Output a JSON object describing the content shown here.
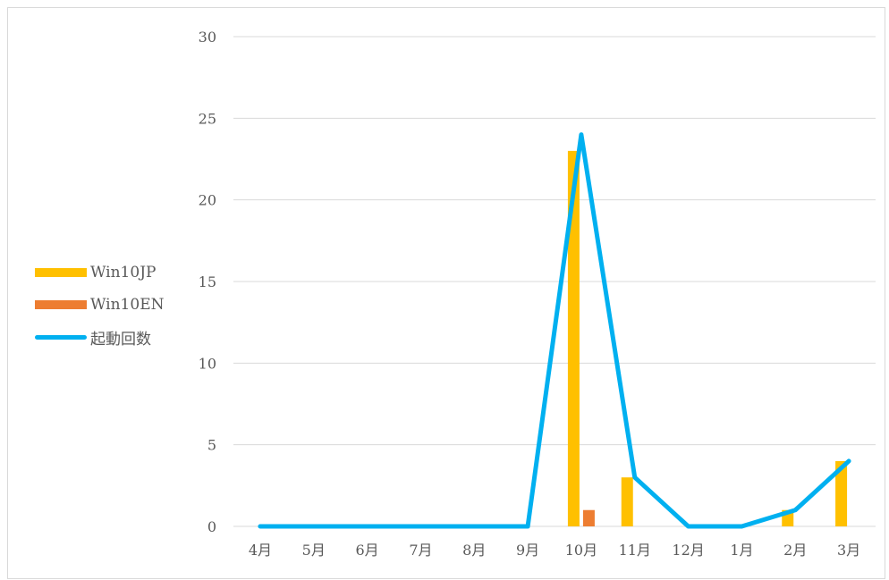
{
  "chart_data": {
    "type": "bar",
    "categories": [
      "4月",
      "5月",
      "6月",
      "7月",
      "8月",
      "9月",
      "10月",
      "11月",
      "12月",
      "1月",
      "2月",
      "3月"
    ],
    "series": [
      {
        "name": "Win10JP",
        "type": "bar",
        "color": "#ffc000",
        "values": [
          0,
          0,
          0,
          0,
          0,
          0,
          23,
          3,
          0,
          0,
          1,
          4
        ]
      },
      {
        "name": "Win10EN",
        "type": "bar",
        "color": "#ed7d31",
        "values": [
          0,
          0,
          0,
          0,
          0,
          0,
          1,
          0,
          0,
          0,
          0,
          0
        ]
      },
      {
        "name": "起動回数",
        "type": "line",
        "color": "#00b0f0",
        "values": [
          0,
          0,
          0,
          0,
          0,
          0,
          24,
          3,
          0,
          0,
          1,
          4
        ]
      }
    ],
    "ylim": [
      0,
      30
    ],
    "yticks": [
      0,
      5,
      10,
      15,
      20,
      25,
      30
    ],
    "grid": true,
    "legend_position": "left",
    "gridline_color": "#d9d9d9"
  }
}
